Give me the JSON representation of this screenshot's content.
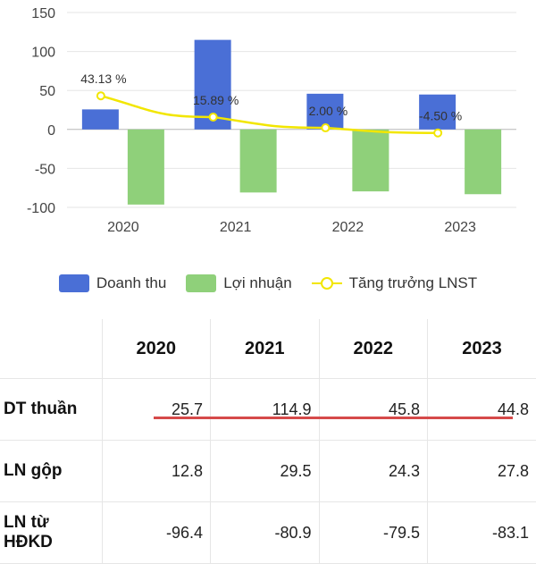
{
  "chart_data": {
    "type": "bar",
    "categories": [
      "2020",
      "2021",
      "2022",
      "2023"
    ],
    "series": [
      {
        "name": "Doanh thu",
        "values": [
          25.7,
          114.9,
          45.8,
          44.8
        ],
        "color": "#4a6fd6"
      },
      {
        "name": "Lợi nhuận",
        "values": [
          -96.4,
          -80.9,
          -79.5,
          -83.1
        ],
        "color": "#8fd07a"
      },
      {
        "name": "Tăng trưởng LNST",
        "type": "line",
        "values": [
          43.13,
          15.89,
          2.0,
          -4.5
        ],
        "labels": [
          "43.13 %",
          "15.89 %",
          "2.00 %",
          "-4.50 %"
        ],
        "color": "#f2e600"
      }
    ],
    "ylim": [
      -100,
      150
    ],
    "yticks": [
      -100,
      -50,
      0,
      50,
      100,
      150
    ],
    "grid": true,
    "legend": "bottom"
  },
  "legend": {
    "revenue": "Doanh thu",
    "profit": "Lợi nhuận",
    "growth": "Tăng trưởng LNST"
  },
  "table": {
    "years": [
      "2020",
      "2021",
      "2022",
      "2023"
    ],
    "rows": [
      {
        "label": "DT thuần",
        "values": [
          "25.7",
          "114.9",
          "45.8",
          "44.8"
        ]
      },
      {
        "label": "LN gộp",
        "values": [
          "12.8",
          "29.5",
          "24.3",
          "27.8"
        ]
      },
      {
        "label": "LN từ HĐKD",
        "values": [
          "-96.4",
          "-80.9",
          "-79.5",
          "-83.1"
        ]
      }
    ]
  },
  "colors": {
    "highlight_underline": "#d64a4a",
    "grid": "#e6e6e6"
  }
}
